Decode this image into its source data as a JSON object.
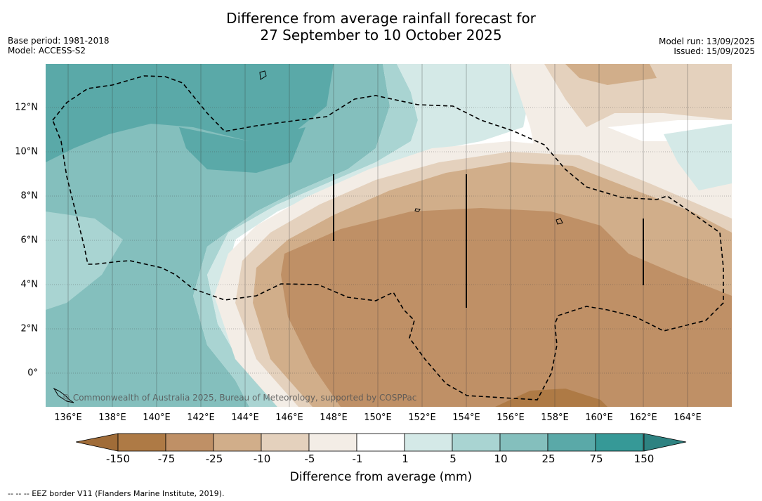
{
  "title": {
    "line1": "Difference from average rainfall forecast for",
    "line2": "27 September to 10 October 2025"
  },
  "meta_left": {
    "base_period": "Base period: 1981-2018",
    "model": "Model: ACCESS-S2"
  },
  "meta_right": {
    "model_run": "Model run: 13/09/2025",
    "issued": "Issued: 15/09/2025"
  },
  "map": {
    "x_ticks": [
      "136°E",
      "138°E",
      "140°E",
      "142°E",
      "144°E",
      "146°E",
      "148°E",
      "150°E",
      "152°E",
      "154°E",
      "156°E",
      "158°E",
      "160°E",
      "162°E",
      "164°E"
    ],
    "y_ticks": [
      "12°N",
      "10°N",
      "8°N",
      "6°N",
      "4°N",
      "2°N",
      "0°"
    ],
    "copyright": "© Commonwealth of Australia 2025, Bureau of Meteorology, supported by COSPPac"
  },
  "colorbar": {
    "labels": [
      "-150",
      "-75",
      "-25",
      "-10",
      "-5",
      "-1",
      "1",
      "5",
      "10",
      "25",
      "75",
      "150"
    ],
    "colors": [
      "#ae7a45",
      "#bf9066",
      "#d1ae8a",
      "#e4d1bd",
      "#f3ede6",
      "#ffffff",
      "#d4e9e7",
      "#a9d4d2",
      "#84bfbd",
      "#5aa9a8",
      "#369997"
    ],
    "extend_low_color": "#a06c38",
    "extend_high_color": "#2e8281",
    "title": "Difference from average (mm)"
  },
  "footnote": "--  --  -- EEZ border V11 (Flanders Marine Institute, 2019)."
}
